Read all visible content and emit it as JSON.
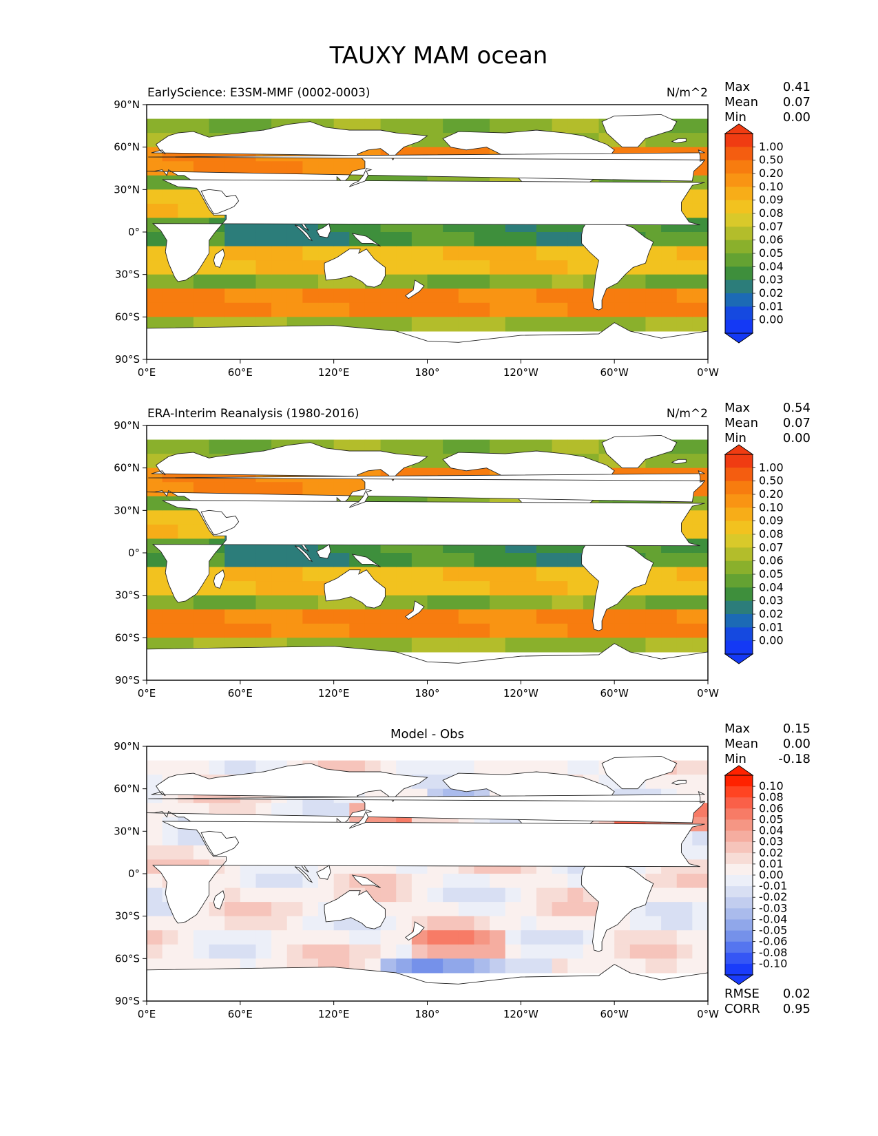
{
  "figure": {
    "title": "TAUXY MAM ocean"
  },
  "chart_data": [
    {
      "type": "heatmap",
      "left_title": "EarlyScience: E3SM-MMF (0002-0003)",
      "units": "N/m^2",
      "stats": [
        {
          "label": "Max",
          "value": "0.41"
        },
        {
          "label": "Mean",
          "value": "0.07"
        },
        {
          "label": "Min",
          "value": "0.00"
        }
      ],
      "colorbar": {
        "levels": [
          "1.00",
          "0.50",
          "0.20",
          "0.10",
          "0.09",
          "0.08",
          "0.07",
          "0.06",
          "0.05",
          "0.04",
          "0.03",
          "0.02",
          "0.01",
          "0.00"
        ],
        "colors": [
          "#f03c12",
          "#f45d10",
          "#f77c0f",
          "#f99413",
          "#f7ad18",
          "#f2c21f",
          "#d9c92a",
          "#b3bd2b",
          "#8ab02c",
          "#64a232",
          "#3e8f3c",
          "#2c7d7a",
          "#1c6ab5",
          "#1549e0",
          "#1439f5"
        ]
      },
      "x_ticks": [
        "0°E",
        "60°E",
        "120°E",
        "180°",
        "120°W",
        "60°W",
        "0°W"
      ],
      "y_ticks": [
        "90°N",
        "60°N",
        "30°N",
        "0°",
        "30°S",
        "60°S",
        "90°S"
      ],
      "xlim": [
        0,
        360
      ],
      "ylim": [
        -90,
        90
      ]
    },
    {
      "type": "heatmap",
      "left_title": "ERA-Interim Reanalysis (1980-2016)",
      "units": "N/m^2",
      "stats": [
        {
          "label": "Max",
          "value": "0.54"
        },
        {
          "label": "Mean",
          "value": "0.07"
        },
        {
          "label": "Min",
          "value": "0.00"
        }
      ],
      "colorbar": {
        "levels": [
          "1.00",
          "0.50",
          "0.20",
          "0.10",
          "0.09",
          "0.08",
          "0.07",
          "0.06",
          "0.05",
          "0.04",
          "0.03",
          "0.02",
          "0.01",
          "0.00"
        ],
        "colors": [
          "#f03c12",
          "#f45d10",
          "#f77c0f",
          "#f99413",
          "#f7ad18",
          "#f2c21f",
          "#d9c92a",
          "#b3bd2b",
          "#8ab02c",
          "#64a232",
          "#3e8f3c",
          "#2c7d7a",
          "#1c6ab5",
          "#1549e0",
          "#1439f5"
        ]
      },
      "x_ticks": [
        "0°E",
        "60°E",
        "120°E",
        "180°",
        "120°W",
        "60°W",
        "0°W"
      ],
      "y_ticks": [
        "90°N",
        "60°N",
        "30°N",
        "0°",
        "30°S",
        "60°S",
        "90°S"
      ],
      "xlim": [
        0,
        360
      ],
      "ylim": [
        -90,
        90
      ]
    },
    {
      "type": "heatmap",
      "center_title": "Model - Obs",
      "stats": [
        {
          "label": "Max",
          "value": "0.15"
        },
        {
          "label": "Mean",
          "value": "0.00"
        },
        {
          "label": "Min",
          "value": "-0.18"
        }
      ],
      "metrics": [
        {
          "label": "RMSE",
          "value": "0.02"
        },
        {
          "label": "CORR",
          "value": "0.95"
        }
      ],
      "colorbar": {
        "levels": [
          "0.10",
          "0.08",
          "0.06",
          "0.05",
          "0.04",
          "0.03",
          "0.02",
          "0.01",
          "0.00",
          "-0.01",
          "-0.02",
          "-0.03",
          "-0.04",
          "-0.05",
          "-0.06",
          "-0.08",
          "-0.10"
        ],
        "colors": [
          "#ff2200",
          "#ff4422",
          "#fa6048",
          "#f77b66",
          "#f59684",
          "#f5ada0",
          "#f6c4bb",
          "#f7dcd6",
          "#faf0ee",
          "#eceff8",
          "#d8dff3",
          "#c2cdef",
          "#aabbec",
          "#90a7ea",
          "#7591ea",
          "#5575ef",
          "#3556f5",
          "#1a3cfa"
        ]
      },
      "x_ticks": [
        "0°E",
        "60°E",
        "120°E",
        "180°",
        "120°W",
        "60°W",
        "0°W"
      ],
      "y_ticks": [
        "90°N",
        "60°N",
        "30°N",
        "0°",
        "30°S",
        "60°S",
        "90°S"
      ],
      "xlim": [
        0,
        360
      ],
      "ylim": [
        -90,
        90
      ]
    }
  ]
}
